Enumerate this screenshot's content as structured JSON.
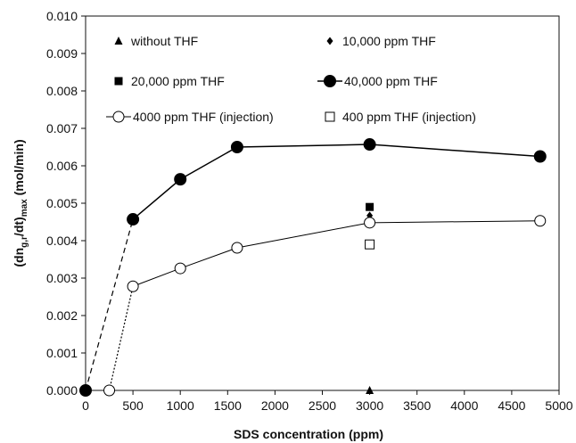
{
  "chart_data": {
    "type": "scatter",
    "title": "",
    "xlabel": "SDS concentration  (ppm)",
    "ylabel": {
      "prefix": "(dn",
      "sub1": "g,r",
      "mid": "/dt)",
      "sub2": "max",
      "suffix": " (mol/min)"
    },
    "xlim": [
      0,
      5000
    ],
    "ylim": [
      0,
      0.01
    ],
    "xticks": [
      "0",
      "500",
      "1000",
      "1500",
      "2000",
      "2500",
      "3000",
      "3500",
      "4000",
      "4500",
      "5000"
    ],
    "yticks": [
      "0.000",
      "0.001",
      "0.002",
      "0.003",
      "0.004",
      "0.005",
      "0.006",
      "0.007",
      "0.008",
      "0.009",
      "0.010"
    ],
    "grid": false,
    "legend_position": "top",
    "series": [
      {
        "name": "without THF",
        "marker": "triangle-filled",
        "line": "none",
        "x": [
          0,
          3000
        ],
        "y": [
          0.0,
          0.0
        ]
      },
      {
        "name": "10,000 ppm THF",
        "marker": "diamond-filled",
        "line": "none",
        "x": [
          0,
          3000
        ],
        "y": [
          0.0,
          0.00467
        ]
      },
      {
        "name": "20,000 ppm THF",
        "marker": "square-filled",
        "line": "none",
        "x": [
          3000
        ],
        "y": [
          0.0049
        ]
      },
      {
        "name": "40,000 ppm THF",
        "marker": "circle-filled",
        "line": "solid",
        "x": [
          500,
          1000,
          1600,
          3000,
          4800
        ],
        "y": [
          0.00457,
          0.00564,
          0.0065,
          0.00657,
          0.00625
        ],
        "lead_in": {
          "style": "dashed",
          "x": [
            0,
            500
          ],
          "y": [
            0.0,
            0.00457
          ]
        }
      },
      {
        "name": "4000 ppm THF (injection)",
        "marker": "circle-open",
        "line": "solid",
        "x": [
          500,
          1000,
          1600,
          3000,
          4800
        ],
        "y": [
          0.00278,
          0.00326,
          0.00381,
          0.00448,
          0.00453
        ],
        "lead_in": {
          "style": "dotted",
          "x": [
            250,
            500
          ],
          "y": [
            0.0,
            0.00278
          ]
        }
      },
      {
        "name": "400 ppm THF (injection)",
        "marker": "square-open",
        "line": "none",
        "x": [
          3000
        ],
        "y": [
          0.0039
        ]
      }
    ],
    "extra_points": [
      {
        "marker": "circle-filled",
        "x": 0,
        "y": 0.0
      },
      {
        "marker": "circle-open",
        "x": 250,
        "y": 0.0
      }
    ]
  }
}
